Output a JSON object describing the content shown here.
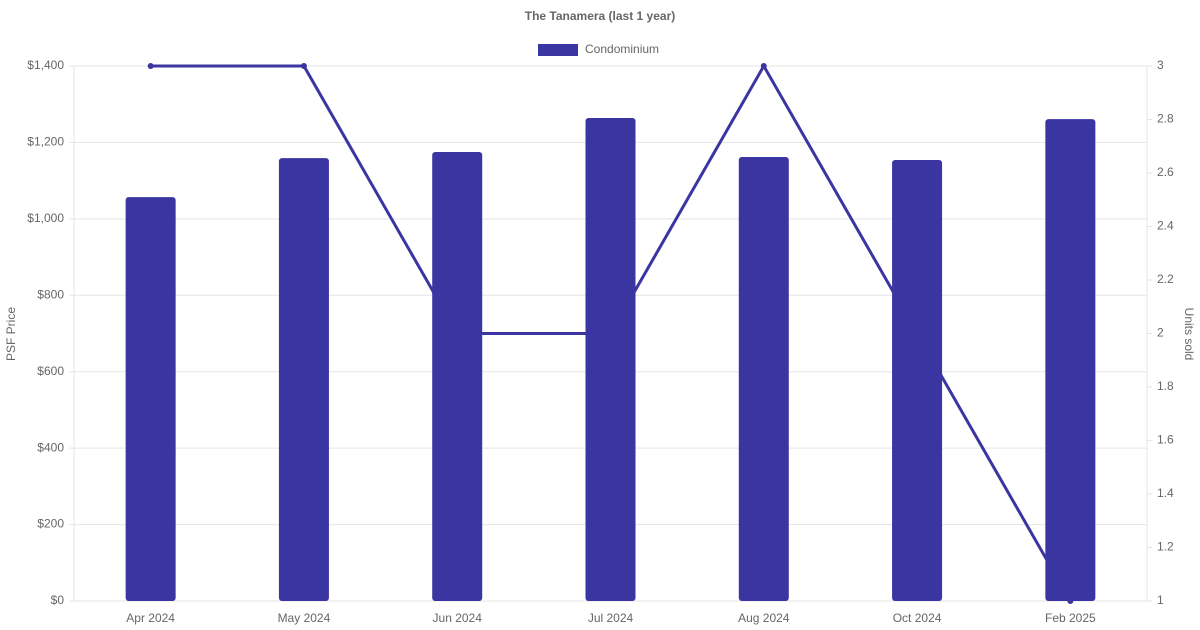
{
  "chart_data": {
    "type": "bar",
    "title": "The Tanamera (last 1 year)",
    "categories": [
      "Apr 2024",
      "May 2024",
      "Jun 2024",
      "Jul 2024",
      "Aug 2024",
      "Oct 2024",
      "Feb 2025"
    ],
    "series": [
      {
        "name": "Condominium",
        "type": "bar",
        "color": "#3a35a0",
        "values": [
          1057,
          1159,
          1175,
          1264,
          1162,
          1154,
          1261
        ]
      },
      {
        "type": "line",
        "axis": "y2",
        "color": "#3a35a0",
        "values": [
          3,
          3,
          2,
          2,
          3,
          2,
          1
        ]
      }
    ],
    "ylabel": "PSF Price",
    "y2label": "Units sold",
    "ylim": [
      0,
      1400
    ],
    "yticks": [
      {
        "value": 0,
        "label": "$0"
      },
      {
        "value": 200,
        "label": "$200"
      },
      {
        "value": 400,
        "label": "$400"
      },
      {
        "value": 600,
        "label": "$600"
      },
      {
        "value": 800,
        "label": "$800"
      },
      {
        "value": 1000,
        "label": "$1,000"
      },
      {
        "value": 1200,
        "label": "$1,200"
      },
      {
        "value": 1400,
        "label": "$1,400"
      }
    ],
    "y2lim": [
      1,
      3
    ],
    "y2ticks": [
      1,
      1.2,
      1.4,
      1.6,
      1.8,
      2,
      2.2,
      2.4,
      2.6,
      2.8,
      3
    ],
    "grid": true
  }
}
